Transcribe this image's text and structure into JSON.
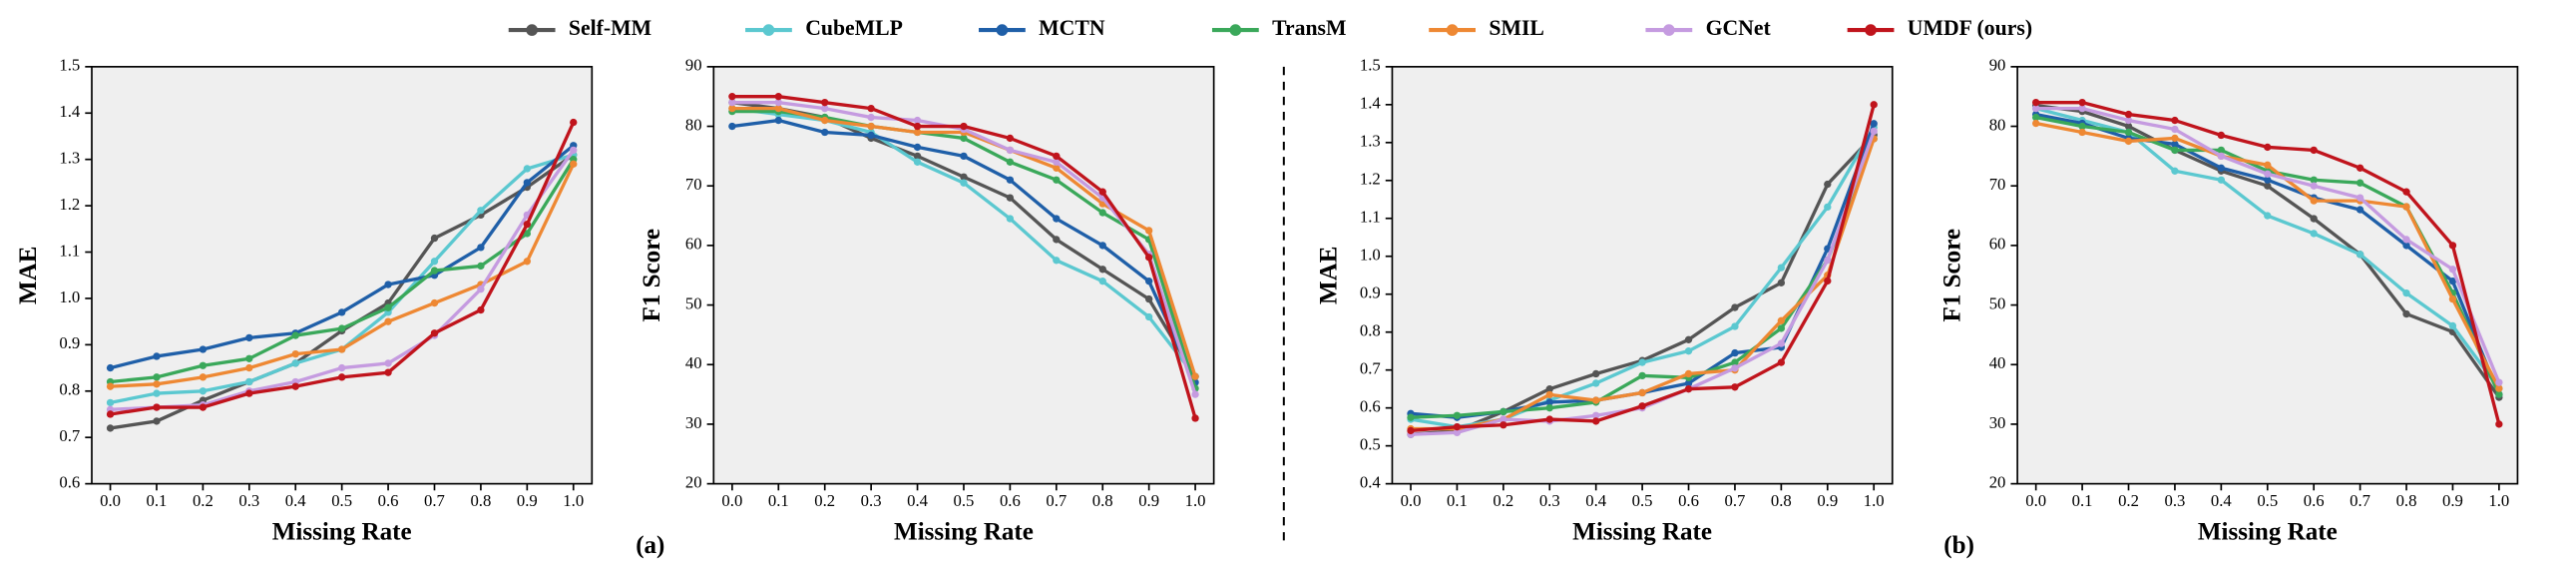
{
  "chart_data": [
    {
      "type": "line",
      "ylabel": "MAE",
      "xlabel": "Missing Rate",
      "x": [
        0,
        0.1,
        0.2,
        0.3,
        0.4,
        0.5,
        0.6,
        0.7,
        0.8,
        0.9,
        1
      ],
      "xlim": [
        -0.04,
        1.04
      ],
      "xticks": [
        {
          "value": 0,
          "label": "0.0"
        },
        0.1,
        0.2,
        0.3,
        0.4,
        0.5,
        0.6,
        0.7,
        0.8,
        0.9,
        {
          "value": 1,
          "label": "1.0"
        }
      ],
      "ylim": [
        0.6,
        1.5
      ],
      "yticks": [
        0.6,
        0.7,
        0.8,
        0.9,
        {
          "value": 1,
          "label": "1.0"
        },
        1.1,
        1.2,
        1.3,
        1.4,
        1.5
      ],
      "series": [
        {
          "name": "Self-MM",
          "color": "#555555",
          "values": [
            0.72,
            0.735,
            0.78,
            0.82,
            0.86,
            0.93,
            0.99,
            1.13,
            1.18,
            1.24,
            1.31
          ]
        },
        {
          "name": "CubeMLP",
          "color": "#5bc8d0",
          "values": [
            0.775,
            0.795,
            0.8,
            0.82,
            0.86,
            0.89,
            0.97,
            1.08,
            1.19,
            1.28,
            1.31
          ]
        },
        {
          "name": "MCTN",
          "color": "#1f5fa8",
          "values": [
            0.85,
            0.875,
            0.89,
            0.915,
            0.925,
            0.97,
            1.03,
            1.05,
            1.11,
            1.25,
            1.33
          ]
        },
        {
          "name": "TransM",
          "color": "#3aa85a",
          "values": [
            0.82,
            0.83,
            0.855,
            0.87,
            0.92,
            0.935,
            0.98,
            1.06,
            1.07,
            1.14,
            1.3
          ]
        },
        {
          "name": "SMIL",
          "color": "#ee8833",
          "values": [
            0.81,
            0.815,
            0.83,
            0.85,
            0.88,
            0.89,
            0.95,
            0.99,
            1.03,
            1.08,
            1.29
          ]
        },
        {
          "name": "GCNet",
          "color": "#c59be0",
          "values": [
            0.76,
            0.765,
            0.77,
            0.8,
            0.82,
            0.85,
            0.86,
            0.92,
            1.02,
            1.18,
            1.32
          ]
        },
        {
          "name": "UMDF (ours)",
          "color": "#c0141c",
          "values": [
            0.75,
            0.765,
            0.765,
            0.795,
            0.81,
            0.83,
            0.84,
            0.925,
            0.975,
            1.16,
            1.38
          ]
        }
      ]
    },
    {
      "type": "line",
      "ylabel": "F1 Score",
      "xlabel": "Missing Rate",
      "annotation": "(a)",
      "x": [
        0,
        0.1,
        0.2,
        0.3,
        0.4,
        0.5,
        0.6,
        0.7,
        0.8,
        0.9,
        1
      ],
      "xlim": [
        -0.04,
        1.04
      ],
      "xticks": [
        {
          "value": 0,
          "label": "0.0"
        },
        0.1,
        0.2,
        0.3,
        0.4,
        0.5,
        0.6,
        0.7,
        0.8,
        0.9,
        {
          "value": 1,
          "label": "1.0"
        }
      ],
      "ylim": [
        20,
        90
      ],
      "yticks": [
        20,
        30,
        40,
        50,
        60,
        70,
        80,
        90
      ],
      "series": [
        {
          "name": "Self-MM",
          "color": "#555555",
          "values": [
            84,
            83,
            81.5,
            78,
            75,
            71.5,
            68,
            61,
            56,
            51,
            38
          ]
        },
        {
          "name": "CubeMLP",
          "color": "#5bc8d0",
          "values": [
            83,
            82,
            81,
            79,
            74,
            70.5,
            64.5,
            57.5,
            54,
            48,
            38
          ]
        },
        {
          "name": "MCTN",
          "color": "#1f5fa8",
          "values": [
            80,
            81,
            79,
            78.5,
            76.5,
            75,
            71,
            64.5,
            60,
            54,
            37
          ]
        },
        {
          "name": "TransM",
          "color": "#3aa85a",
          "values": [
            82.5,
            82.5,
            81.5,
            80,
            79,
            78,
            74,
            71,
            65.5,
            61,
            36
          ]
        },
        {
          "name": "SMIL",
          "color": "#ee8833",
          "values": [
            83,
            83,
            81,
            80,
            79,
            79,
            76,
            73,
            67,
            62.5,
            38
          ]
        },
        {
          "name": "GCNet",
          "color": "#c59be0",
          "values": [
            84,
            84,
            83,
            81.5,
            81,
            79.5,
            76,
            74,
            68,
            58.5,
            35
          ]
        },
        {
          "name": "UMDF (ours)",
          "color": "#c0141c",
          "values": [
            85,
            85,
            84,
            83,
            80,
            80,
            78,
            75,
            69,
            58,
            31
          ]
        }
      ]
    },
    {
      "type": "line",
      "ylabel": "MAE",
      "xlabel": "Missing Rate",
      "x": [
        0,
        0.1,
        0.2,
        0.3,
        0.4,
        0.5,
        0.6,
        0.7,
        0.8,
        0.9,
        1
      ],
      "xlim": [
        -0.04,
        1.04
      ],
      "xticks": [
        {
          "value": 0,
          "label": "0.0"
        },
        0.1,
        0.2,
        0.3,
        0.4,
        0.5,
        0.6,
        0.7,
        0.8,
        0.9,
        {
          "value": 1,
          "label": "1.0"
        }
      ],
      "ylim": [
        0.4,
        1.5
      ],
      "yticks": [
        0.4,
        0.5,
        0.6,
        0.7,
        0.8,
        0.9,
        {
          "value": 1,
          "label": "1.0"
        },
        1.1,
        1.2,
        1.3,
        1.4,
        1.5
      ],
      "series": [
        {
          "name": "Self-MM",
          "color": "#555555",
          "values": [
            0.53,
            0.54,
            0.59,
            0.65,
            0.69,
            0.725,
            0.78,
            0.865,
            0.93,
            1.19,
            1.32
          ]
        },
        {
          "name": "CubeMLP",
          "color": "#5bc8d0",
          "values": [
            0.57,
            0.55,
            0.57,
            0.62,
            0.665,
            0.72,
            0.75,
            0.815,
            0.97,
            1.13,
            1.34
          ]
        },
        {
          "name": "MCTN",
          "color": "#1f5fa8",
          "values": [
            0.585,
            0.575,
            0.59,
            0.615,
            0.62,
            0.64,
            0.665,
            0.745,
            0.76,
            1.02,
            1.35
          ]
        },
        {
          "name": "TransM",
          "color": "#3aa85a",
          "values": [
            0.575,
            0.58,
            0.59,
            0.6,
            0.615,
            0.685,
            0.68,
            0.72,
            0.81,
            0.99,
            1.31
          ]
        },
        {
          "name": "SMIL",
          "color": "#ee8833",
          "values": [
            0.545,
            0.545,
            0.57,
            0.635,
            0.62,
            0.64,
            0.69,
            0.7,
            0.83,
            0.95,
            1.31
          ]
        },
        {
          "name": "GCNet",
          "color": "#c59be0",
          "values": [
            0.53,
            0.535,
            0.57,
            0.565,
            0.58,
            0.6,
            0.65,
            0.705,
            0.77,
            0.99,
            1.33
          ]
        },
        {
          "name": "UMDF (ours)",
          "color": "#c0141c",
          "values": [
            0.54,
            0.55,
            0.555,
            0.57,
            0.565,
            0.605,
            0.65,
            0.655,
            0.72,
            0.935,
            1.4
          ]
        }
      ]
    },
    {
      "type": "line",
      "ylabel": "F1 Score",
      "xlabel": "Missing Rate",
      "annotation": "(b)",
      "x": [
        0,
        0.1,
        0.2,
        0.3,
        0.4,
        0.5,
        0.6,
        0.7,
        0.8,
        0.9,
        1
      ],
      "xlim": [
        -0.04,
        1.04
      ],
      "xticks": [
        {
          "value": 0,
          "label": "0.0"
        },
        0.1,
        0.2,
        0.3,
        0.4,
        0.5,
        0.6,
        0.7,
        0.8,
        0.9,
        {
          "value": 1,
          "label": "1.0"
        }
      ],
      "ylim": [
        20,
        90
      ],
      "yticks": [
        20,
        30,
        40,
        50,
        60,
        70,
        80,
        90
      ],
      "series": [
        {
          "name": "Self-MM",
          "color": "#555555",
          "values": [
            83.5,
            82.5,
            80,
            76,
            72.5,
            70,
            64.5,
            58.5,
            48.5,
            45.5,
            34.5
          ]
        },
        {
          "name": "CubeMLP",
          "color": "#5bc8d0",
          "values": [
            83,
            81,
            79,
            72.5,
            71,
            65,
            62,
            58.5,
            52,
            46.5,
            36
          ]
        },
        {
          "name": "MCTN",
          "color": "#1f5fa8",
          "values": [
            82,
            80.5,
            78,
            77,
            73,
            71,
            68,
            66,
            60,
            54,
            35
          ]
        },
        {
          "name": "TransM",
          "color": "#3aa85a",
          "values": [
            81.5,
            80,
            79,
            76,
            76,
            72.5,
            71,
            70.5,
            66.5,
            52,
            35
          ]
        },
        {
          "name": "SMIL",
          "color": "#ee8833",
          "values": [
            80.5,
            79,
            77.5,
            78,
            75,
            73.5,
            67.5,
            67.5,
            66.5,
            51,
            36
          ]
        },
        {
          "name": "GCNet",
          "color": "#c59be0",
          "values": [
            83,
            83,
            81,
            79.5,
            75,
            72,
            70,
            68,
            61,
            56,
            37
          ]
        },
        {
          "name": "UMDF (ours)",
          "color": "#c0141c",
          "values": [
            84,
            84,
            82,
            81,
            78.5,
            76.5,
            76,
            73,
            69,
            60,
            30
          ]
        }
      ]
    }
  ]
}
